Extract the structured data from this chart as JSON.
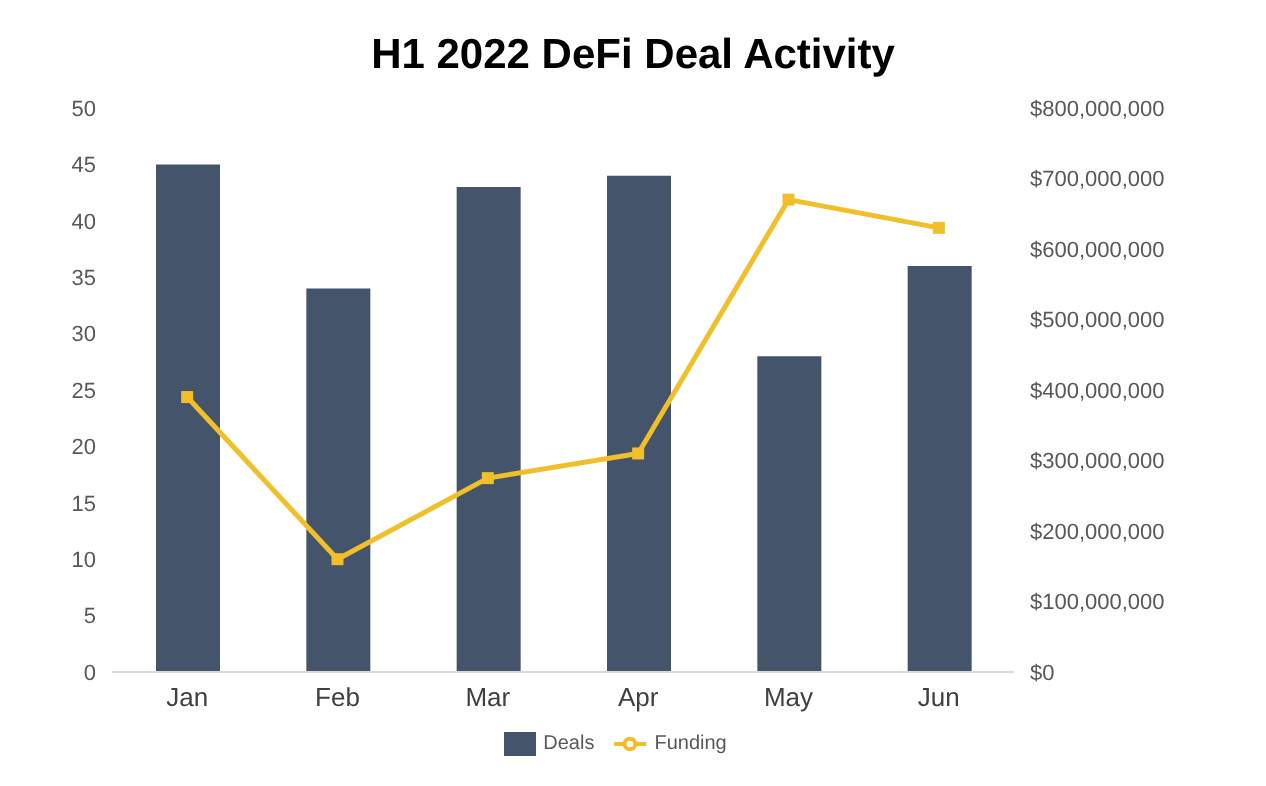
{
  "chart_data": {
    "type": "bar",
    "title": "H1 2022 DeFi Deal Activity",
    "categories": [
      "Jan",
      "Feb",
      "Mar",
      "Apr",
      "May",
      "Jun"
    ],
    "series": [
      {
        "name": "Deals",
        "color": "#44546a",
        "values": [
          45,
          34,
          43,
          44,
          28,
          36
        ]
      },
      {
        "name": "Funding",
        "type": "line",
        "axis": "y2",
        "color": "#f0bf2a",
        "values": [
          390000000,
          160000000,
          275000000,
          310000000,
          670000000,
          630000000
        ]
      }
    ],
    "ylim": [
      0,
      50
    ],
    "yticks": [
      0,
      5,
      10,
      15,
      20,
      25,
      30,
      35,
      40,
      45,
      50
    ],
    "y2lim": [
      0,
      800000000
    ],
    "y2ticks": [
      {
        "value": 0,
        "label": "$0"
      },
      {
        "value": 100000000,
        "label": "$100,000,000"
      },
      {
        "value": 200000000,
        "label": "$200,000,000"
      },
      {
        "value": 300000000,
        "label": "$300,000,000"
      },
      {
        "value": 400000000,
        "label": "$400,000,000"
      },
      {
        "value": 500000000,
        "label": "$500,000,000"
      },
      {
        "value": 600000000,
        "label": "$600,000,000"
      },
      {
        "value": 700000000,
        "label": "$700,000,000"
      },
      {
        "value": 800000000,
        "label": "$800,000,000"
      }
    ],
    "legend": "bottom",
    "marker": "square",
    "grid": false
  }
}
